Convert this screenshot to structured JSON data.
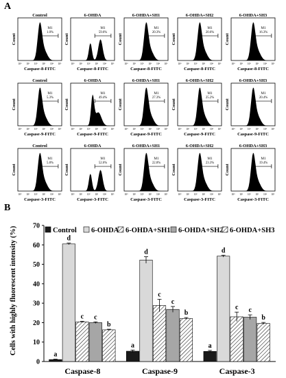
{
  "panel_a": {
    "label": "A",
    "rows": [
      {
        "xlabel": "Caspase-8-FITC",
        "ylabel": "Count",
        "cells": [
          {
            "title": "Control",
            "gate": "M1",
            "pct": "1.0%",
            "profile": "single"
          },
          {
            "title": "6-OHDA",
            "gate": "M1",
            "pct": "59.6%",
            "profile": "double"
          },
          {
            "title": "6-OHDA+SH1",
            "gate": "M1",
            "pct": "20.3%",
            "profile": "single"
          },
          {
            "title": "6-OHDA+SH2",
            "gate": "M1",
            "pct": "20.6%",
            "profile": "single"
          },
          {
            "title": "6-OHDA+SH3",
            "gate": "M1",
            "pct": "16.3%",
            "profile": "single"
          }
        ]
      },
      {
        "xlabel": "Caspase-9-FITC",
        "ylabel": "Count",
        "cells": [
          {
            "title": "Control",
            "gate": "M1",
            "pct": "5.3%",
            "profile": "single"
          },
          {
            "title": "6-OHDA",
            "gate": "M1",
            "pct": "49.4%",
            "profile": "wide"
          },
          {
            "title": "6-OHDA+SH1",
            "gate": "M1",
            "pct": "27.3%",
            "profile": "single"
          },
          {
            "title": "6-OHDA+SH2",
            "gate": "M1",
            "pct": "25.2%",
            "profile": "single"
          },
          {
            "title": "6-OHDA+SH3",
            "gate": "M1",
            "pct": "20.4%",
            "profile": "single"
          }
        ]
      },
      {
        "xlabel": "Caspase-3-FITC",
        "ylabel": "Count",
        "cells": [
          {
            "title": "Control",
            "gate": "M1",
            "pct": "5.8%",
            "profile": "single"
          },
          {
            "title": "6-OHDA",
            "gate": "M1",
            "pct": "52.6%",
            "profile": "double"
          },
          {
            "title": "6-OHDA+SH1",
            "gate": "M1",
            "pct": "22.8%",
            "profile": "single"
          },
          {
            "title": "6-OHDA+SH2",
            "gate": "M1",
            "pct": "23.3%",
            "profile": "single"
          },
          {
            "title": "6-OHDA+SH3",
            "gate": "M1",
            "pct": "19.4%",
            "profile": "single"
          }
        ]
      }
    ],
    "xticks": [
      "10⁰",
      "10¹",
      "10²",
      "10³",
      "10⁴",
      "10⁵"
    ]
  },
  "panel_b": {
    "label": "B"
  },
  "chart_data": {
    "type": "bar",
    "categories": [
      "Caspase-8",
      "Caspase-9",
      "Caspase-3"
    ],
    "series": [
      {
        "name": "Control",
        "values": [
          1.0,
          5.3,
          5.2
        ],
        "errors": [
          0.2,
          0.6,
          0.5
        ],
        "letters": [
          "a",
          "a",
          "a"
        ],
        "fill": "#1a1a1a",
        "pattern": "solid"
      },
      {
        "name": "6-OHDA",
        "values": [
          60.5,
          52.2,
          54.2
        ],
        "errors": [
          0.4,
          1.7,
          0.5
        ],
        "letters": [
          "d",
          "d",
          "d"
        ],
        "fill": "#d9d9d9",
        "pattern": "solid"
      },
      {
        "name": "6-OHDA+SH1",
        "values": [
          20.4,
          28.8,
          23.0
        ],
        "errors": [
          0.3,
          3.2,
          2.4
        ],
        "letters": [
          "c",
          "c",
          "c"
        ],
        "fill": "#ffffff",
        "pattern": "diag"
      },
      {
        "name": "6-OHDA+SH2",
        "values": [
          20.0,
          26.8,
          22.8
        ],
        "errors": [
          0.4,
          1.5,
          1.2
        ],
        "letters": [
          "c",
          "c",
          "c"
        ],
        "fill": "#a6a6a6",
        "pattern": "solid"
      },
      {
        "name": "6-OHDA+SH3",
        "values": [
          16.3,
          22.1,
          19.6
        ],
        "errors": [
          0.3,
          0.5,
          0.5
        ],
        "letters": [
          "b",
          "b",
          "b"
        ],
        "fill": "#ffffff",
        "pattern": "diag"
      }
    ],
    "ylabel": "Cells with highly fluorescent intensity (%)",
    "xlabel": "",
    "ylim": [
      0,
      70
    ],
    "yticks": [
      0,
      10,
      20,
      30,
      40,
      50,
      60,
      70
    ],
    "grid": false,
    "legend": "top"
  }
}
